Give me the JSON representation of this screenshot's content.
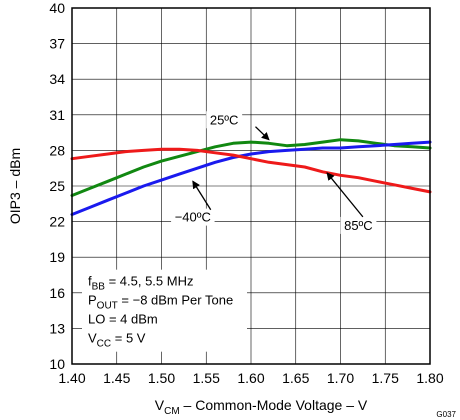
{
  "chart_data": {
    "type": "line",
    "xlabel": {
      "main": "V",
      "sub": "CM",
      "rest": " – Common-Mode Voltage – V"
    },
    "ylabel": "OIP3 – dBm",
    "xlim": [
      1.4,
      1.8
    ],
    "ylim": [
      10,
      40
    ],
    "x_ticks": [
      "1.40",
      "1.45",
      "1.50",
      "1.55",
      "1.60",
      "1.65",
      "1.70",
      "1.75",
      "1.80"
    ],
    "y_ticks": [
      "10",
      "13",
      "16",
      "19",
      "22",
      "25",
      "28",
      "31",
      "34",
      "37",
      "40"
    ],
    "grid": true,
    "figure_id": "G037",
    "conditions": [
      {
        "main": "f",
        "sub": "BB",
        "rest": " = 4.5, 5.5 MHz"
      },
      {
        "main": "P",
        "sub": "OUT",
        "rest": " = −8 dBm Per Tone"
      },
      {
        "main": "LO = 4 dBm",
        "sub": "",
        "rest": ""
      },
      {
        "main": "V",
        "sub": "CC",
        "rest": " =  5 V"
      }
    ],
    "series": [
      {
        "name": "25ºC",
        "color": "#118811",
        "label_pos": [
          1.57,
          30.2
        ],
        "arrow_from": [
          1.605,
          30.0
        ],
        "arrow_to": [
          1.62,
          28.9
        ],
        "x": [
          1.4,
          1.42,
          1.44,
          1.46,
          1.48,
          1.5,
          1.52,
          1.54,
          1.56,
          1.58,
          1.6,
          1.62,
          1.64,
          1.66,
          1.68,
          1.7,
          1.72,
          1.74,
          1.76,
          1.78,
          1.8
        ],
        "y": [
          24.2,
          24.8,
          25.4,
          26.0,
          26.6,
          27.1,
          27.5,
          27.9,
          28.3,
          28.6,
          28.7,
          28.6,
          28.4,
          28.5,
          28.7,
          28.9,
          28.8,
          28.6,
          28.4,
          28.3,
          28.2
        ]
      },
      {
        "name": "−40ºC",
        "color": "#1a1aee",
        "label_pos": [
          1.535,
          22.0
        ],
        "arrow_from": [
          1.555,
          23.0
        ],
        "arrow_to": [
          1.535,
          25.4
        ],
        "x": [
          1.4,
          1.42,
          1.44,
          1.46,
          1.48,
          1.5,
          1.52,
          1.54,
          1.56,
          1.58,
          1.6,
          1.62,
          1.64,
          1.66,
          1.68,
          1.7,
          1.72,
          1.74,
          1.76,
          1.78,
          1.8
        ],
        "y": [
          22.6,
          23.2,
          23.8,
          24.4,
          25.0,
          25.5,
          26.0,
          26.5,
          27.0,
          27.4,
          27.7,
          27.9,
          28.0,
          28.1,
          28.2,
          28.2,
          28.3,
          28.4,
          28.5,
          28.6,
          28.7
        ]
      },
      {
        "name": "85ºC",
        "color": "#ee1a1a",
        "label_pos": [
          1.72,
          21.3
        ],
        "arrow_from": [
          1.725,
          22.4
        ],
        "arrow_to": [
          1.685,
          26.1
        ],
        "x": [
          1.4,
          1.42,
          1.44,
          1.46,
          1.48,
          1.5,
          1.52,
          1.54,
          1.56,
          1.58,
          1.6,
          1.62,
          1.64,
          1.66,
          1.68,
          1.7,
          1.72,
          1.74,
          1.76,
          1.78,
          1.8
        ],
        "y": [
          27.3,
          27.5,
          27.7,
          27.9,
          28.0,
          28.1,
          28.1,
          28.0,
          27.8,
          27.6,
          27.3,
          27.0,
          26.8,
          26.6,
          26.2,
          25.9,
          25.7,
          25.4,
          25.1,
          24.8,
          24.5
        ]
      }
    ]
  }
}
